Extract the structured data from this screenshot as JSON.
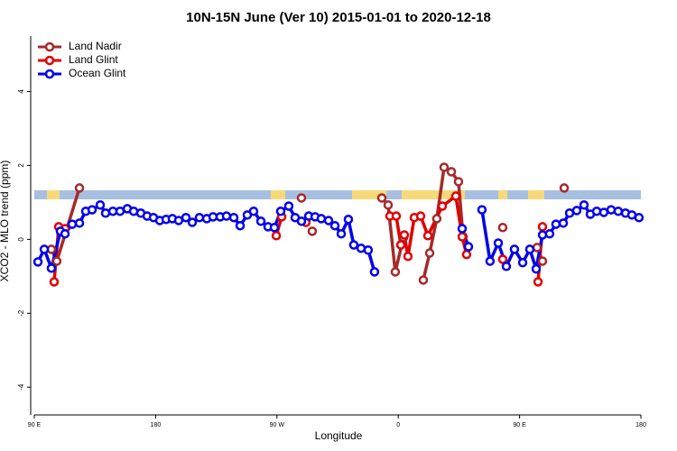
{
  "chart_data": {
    "type": "line",
    "title": "10N-15N June (Ver 10)   2015-01-01 to 2020-12-18",
    "x_label": "Longitude",
    "y_label": "XCO2 - MLO trend (ppm)",
    "xlim": [
      90,
      540
    ],
    "ylim": [
      -4.75,
      5.5
    ],
    "xticks": [
      {
        "value": 90,
        "label": "90 E"
      },
      {
        "value": 180,
        "label": "180"
      },
      {
        "value": 270,
        "label": "90 W"
      },
      {
        "value": 360,
        "label": "0"
      },
      {
        "value": 450,
        "label": "90 E"
      },
      {
        "value": 540,
        "label": "180"
      }
    ],
    "yticks": [
      -4,
      -2,
      0,
      2,
      4
    ],
    "legend": "top-left",
    "series": [
      {
        "name": "Land Nadir",
        "color": "#a52a2a",
        "x": [
          102.7,
          106.7,
          123.5,
          null,
          288.2,
          null,
          296.2,
          null,
          347.8,
          352.5,
          357.8,
          363.9,
          null,
          378.6,
          383.3,
          388.6,
          394.0,
          399.4,
          404.7,
          408.1,
          null,
          437.5,
          null,
          463.0,
          467.0,
          null,
          483.1
        ],
        "values": [
          -0.27,
          -0.59,
          1.39,
          null,
          1.12,
          null,
          0.22,
          null,
          1.12,
          0.93,
          -0.88,
          0.05,
          null,
          -1.1,
          -0.37,
          0.56,
          1.95,
          1.83,
          1.56,
          0.07,
          null,
          0.32,
          null,
          -0.22,
          -0.59,
          null,
          1.39
        ]
      },
      {
        "name": "Land Glint",
        "color": "#e00000",
        "x": [
          104.7,
          108.1,
          112.8,
          null,
          269.5,
          273.5,
          null,
          291.5,
          null,
          353.8,
          358.5,
          361.9,
          364.5,
          367.2,
          371.9,
          376.6,
          382.0,
          392.7,
          402.7,
          407.4,
          410.7,
          null,
          437.5,
          null,
          463.7,
          467.0
        ],
        "values": [
          -1.15,
          0.34,
          0.29,
          null,
          0.1,
          0.61,
          null,
          0.46,
          null,
          0.63,
          0.63,
          -0.15,
          0.12,
          -0.46,
          0.59,
          0.63,
          0.1,
          0.9,
          1.17,
          0.07,
          -0.41,
          null,
          -0.54,
          null,
          -1.15,
          0.34
        ]
      },
      {
        "name": "Ocean Glint",
        "color": "#0000ee",
        "x": [
          92.7,
          97.4,
          102.7,
          109.4,
          112.8,
          118.1,
          123.5,
          128.2,
          132.9,
          138.9,
          142.9,
          148.3,
          153.6,
          159.0,
          163.7,
          169.0,
          173.7,
          178.4,
          183.1,
          187.8,
          192.4,
          197.1,
          202.5,
          207.2,
          212.5,
          217.9,
          222.6,
          227.9,
          232.6,
          238.0,
          242.7,
          248.0,
          252.7,
          258.1,
          263.4,
          268.1,
          272.8,
          278.8,
          283.5,
          288.2,
          293.6,
          298.3,
          302.9,
          308.3,
          313.0,
          317.7,
          323.0,
          327.0,
          332.4,
          337.7,
          342.4,
          null,
          407.4,
          412.1,
          null,
          422.1,
          428.1,
          434.2,
          440.2,
          446.2,
          452.3,
          457.6,
          462.3,
          467.0,
          472.3,
          477.0,
          482.4,
          487.1,
          492.4,
          497.8,
          502.5,
          507.2,
          512.5,
          517.9,
          523.2,
          528.6,
          533.3,
          538.6
        ],
        "values": [
          -0.61,
          -0.27,
          -0.78,
          0.22,
          0.15,
          0.41,
          0.44,
          0.76,
          0.8,
          0.93,
          0.71,
          0.76,
          0.76,
          0.83,
          0.76,
          0.71,
          0.63,
          0.59,
          0.51,
          0.54,
          0.56,
          0.51,
          0.59,
          0.46,
          0.59,
          0.56,
          0.61,
          0.61,
          0.63,
          0.59,
          0.37,
          0.66,
          0.76,
          0.49,
          0.34,
          0.32,
          0.76,
          0.9,
          0.59,
          0.49,
          0.63,
          0.61,
          0.56,
          0.51,
          0.37,
          0.15,
          0.54,
          -0.15,
          -0.24,
          -0.29,
          -0.88,
          null,
          0.29,
          -0.2,
          null,
          0.8,
          -0.59,
          -0.1,
          -0.73,
          -0.27,
          -0.63,
          -0.27,
          -0.8,
          0.12,
          0.15,
          0.41,
          0.44,
          0.71,
          0.78,
          0.93,
          0.68,
          0.76,
          0.73,
          0.8,
          0.76,
          0.71,
          0.66,
          0.59
        ]
      }
    ]
  }
}
